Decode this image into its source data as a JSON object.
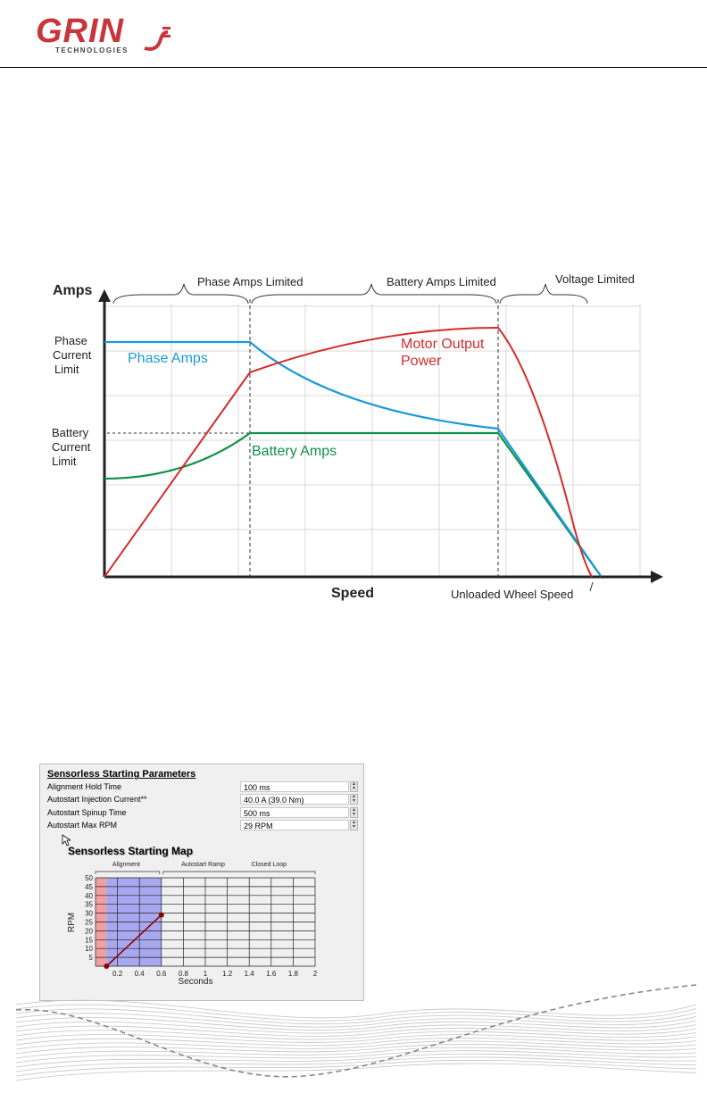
{
  "header": {
    "logo_text": "GRIN",
    "logo_subtext": "TECHNOLOGIES"
  },
  "speed_chart": {
    "y_title": "Amps",
    "x_title": "Speed",
    "x_end_label": "Unloaded Wheel Speed",
    "y_labels": {
      "phase_limit": [
        "Phase",
        "Current",
        "Limit"
      ],
      "battery_limit": [
        "Battery",
        "Current",
        "Limit"
      ]
    },
    "regions": {
      "phase": "Phase Amps Limited",
      "battery": "Battery Amps Limited",
      "voltage": "Voltage Limited"
    },
    "series_labels": {
      "phase_amps": "Phase Amps",
      "battery_amps": "Battery Amps",
      "motor_power_line1": "Motor Output",
      "motor_power_line2": "Power"
    },
    "colors": {
      "phase_amps": "#1a9ad6",
      "battery_amps": "#119048",
      "motor_power": "#d42b2b"
    }
  },
  "parameters_panel": {
    "title": "Sensorless Starting Parameters",
    "rows": [
      {
        "label": "Alignment Hold Time",
        "value": "100 ms"
      },
      {
        "label": "Autostart Injection Current**",
        "value": "40.0 A  (39.0 Nm)"
      },
      {
        "label": "Autostart Spinup Time",
        "value": "500 ms"
      },
      {
        "label": "Autostart Max RPM",
        "value": "29 RPM"
      }
    ],
    "map_title": "Sensorless Starting Map"
  },
  "chart_data": {
    "type": "line",
    "title": "Sensorless Starting Map",
    "xlabel": "Seconds",
    "ylabel": "RPM",
    "xlim": [
      0,
      2
    ],
    "ylim": [
      0,
      50
    ],
    "x_ticks": [
      "0.2",
      "0.4",
      "0.6",
      "0.8",
      "1",
      "1.2",
      "1.4",
      "1.6",
      "1.8",
      "2"
    ],
    "y_ticks": [
      "5",
      "10",
      "15",
      "20",
      "25",
      "30",
      "35",
      "40",
      "45",
      "50"
    ],
    "regions": [
      {
        "name": "Alignment",
        "x_start": 0,
        "x_end": 0.1,
        "color": "#f0a0a0"
      },
      {
        "name": "Autostart Ramp",
        "x_start": 0.1,
        "x_end": 0.6,
        "color": "#a8a8f0"
      },
      {
        "name": "Closed Loop",
        "x_start": 0.6,
        "x_end": 2
      }
    ],
    "series": [
      {
        "x": [
          0.1,
          0.6
        ],
        "y": [
          0,
          29
        ]
      }
    ],
    "line_color": "#8b0000",
    "grid": true
  }
}
